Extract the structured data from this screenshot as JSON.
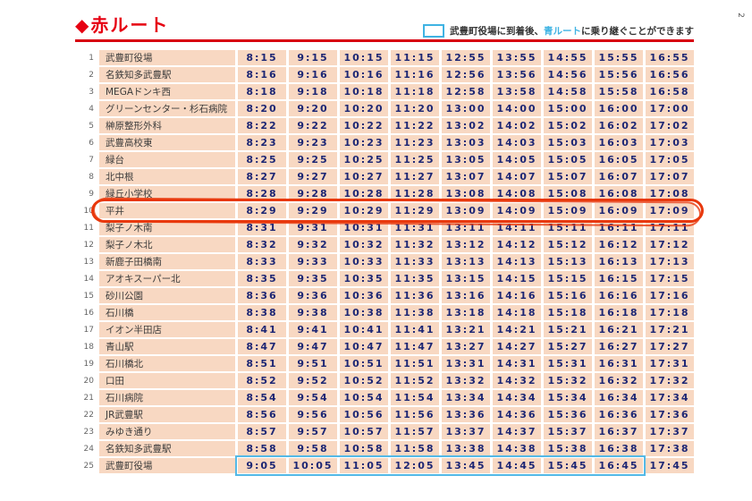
{
  "page_number": "2",
  "theme": {
    "accent": "#e60012",
    "rule": "#d7000f",
    "blue": "#3fb3e3",
    "marker": "#e8380d",
    "rowbg": "#f8d8c2",
    "timecol": "#1c2674",
    "namecol": "#3b3b3b"
  },
  "header": {
    "title": "◆赤ルート",
    "note": {
      "part1": "武豊町役場に到着後、",
      "blue_route": "青ルート",
      "part2": "に乗り継ぐことができます"
    }
  },
  "table": {
    "highlight_row": 10,
    "blue_box": {
      "row": 25,
      "col_start": 0,
      "col_end": 7
    },
    "rows": [
      {
        "no": 1,
        "stop": "武豊町役場",
        "times": [
          "8:15",
          "9:15",
          "10:15",
          "11:15",
          "12:55",
          "13:55",
          "14:55",
          "15:55",
          "16:55"
        ]
      },
      {
        "no": 2,
        "stop": "名鉄知多武豊駅",
        "times": [
          "8:16",
          "9:16",
          "10:16",
          "11:16",
          "12:56",
          "13:56",
          "14:56",
          "15:56",
          "16:56"
        ]
      },
      {
        "no": 3,
        "stop": "MEGAドンキ西",
        "times": [
          "8:18",
          "9:18",
          "10:18",
          "11:18",
          "12:58",
          "13:58",
          "14:58",
          "15:58",
          "16:58"
        ]
      },
      {
        "no": 4,
        "stop": "グリーンセンター・杉石病院",
        "times": [
          "8:20",
          "9:20",
          "10:20",
          "11:20",
          "13:00",
          "14:00",
          "15:00",
          "16:00",
          "17:00"
        ]
      },
      {
        "no": 5,
        "stop": "榊原整形外科",
        "times": [
          "8:22",
          "9:22",
          "10:22",
          "11:22",
          "13:02",
          "14:02",
          "15:02",
          "16:02",
          "17:02"
        ]
      },
      {
        "no": 6,
        "stop": "武豊高校東",
        "times": [
          "8:23",
          "9:23",
          "10:23",
          "11:23",
          "13:03",
          "14:03",
          "15:03",
          "16:03",
          "17:03"
        ]
      },
      {
        "no": 7,
        "stop": "緑台",
        "times": [
          "8:25",
          "9:25",
          "10:25",
          "11:25",
          "13:05",
          "14:05",
          "15:05",
          "16:05",
          "17:05"
        ]
      },
      {
        "no": 8,
        "stop": "北中根",
        "times": [
          "8:27",
          "9:27",
          "10:27",
          "11:27",
          "13:07",
          "14:07",
          "15:07",
          "16:07",
          "17:07"
        ]
      },
      {
        "no": 9,
        "stop": "緑丘小学校",
        "times": [
          "8:28",
          "9:28",
          "10:28",
          "11:28",
          "13:08",
          "14:08",
          "15:08",
          "16:08",
          "17:08"
        ]
      },
      {
        "no": 10,
        "stop": "平井",
        "times": [
          "8:29",
          "9:29",
          "10:29",
          "11:29",
          "13:09",
          "14:09",
          "15:09",
          "16:09",
          "17:09"
        ]
      },
      {
        "no": 11,
        "stop": "梨子ノ木南",
        "times": [
          "8:31",
          "9:31",
          "10:31",
          "11:31",
          "13:11",
          "14:11",
          "15:11",
          "16:11",
          "17:11"
        ]
      },
      {
        "no": 12,
        "stop": "梨子ノ木北",
        "times": [
          "8:32",
          "9:32",
          "10:32",
          "11:32",
          "13:12",
          "14:12",
          "15:12",
          "16:12",
          "17:12"
        ]
      },
      {
        "no": 13,
        "stop": "新鹿子田橋南",
        "times": [
          "8:33",
          "9:33",
          "10:33",
          "11:33",
          "13:13",
          "14:13",
          "15:13",
          "16:13",
          "17:13"
        ]
      },
      {
        "no": 14,
        "stop": "アオキスーパー北",
        "times": [
          "8:35",
          "9:35",
          "10:35",
          "11:35",
          "13:15",
          "14:15",
          "15:15",
          "16:15",
          "17:15"
        ]
      },
      {
        "no": 15,
        "stop": "砂川公園",
        "times": [
          "8:36",
          "9:36",
          "10:36",
          "11:36",
          "13:16",
          "14:16",
          "15:16",
          "16:16",
          "17:16"
        ]
      },
      {
        "no": 16,
        "stop": "石川橋",
        "times": [
          "8:38",
          "9:38",
          "10:38",
          "11:38",
          "13:18",
          "14:18",
          "15:18",
          "16:18",
          "17:18"
        ]
      },
      {
        "no": 17,
        "stop": "イオン半田店",
        "times": [
          "8:41",
          "9:41",
          "10:41",
          "11:41",
          "13:21",
          "14:21",
          "15:21",
          "16:21",
          "17:21"
        ]
      },
      {
        "no": 18,
        "stop": "青山駅",
        "times": [
          "8:47",
          "9:47",
          "10:47",
          "11:47",
          "13:27",
          "14:27",
          "15:27",
          "16:27",
          "17:27"
        ]
      },
      {
        "no": 19,
        "stop": "石川橋北",
        "times": [
          "8:51",
          "9:51",
          "10:51",
          "11:51",
          "13:31",
          "14:31",
          "15:31",
          "16:31",
          "17:31"
        ]
      },
      {
        "no": 20,
        "stop": "口田",
        "times": [
          "8:52",
          "9:52",
          "10:52",
          "11:52",
          "13:32",
          "14:32",
          "15:32",
          "16:32",
          "17:32"
        ]
      },
      {
        "no": 21,
        "stop": "石川病院",
        "times": [
          "8:54",
          "9:54",
          "10:54",
          "11:54",
          "13:34",
          "14:34",
          "15:34",
          "16:34",
          "17:34"
        ]
      },
      {
        "no": 22,
        "stop": "JR武豊駅",
        "times": [
          "8:56",
          "9:56",
          "10:56",
          "11:56",
          "13:36",
          "14:36",
          "15:36",
          "16:36",
          "17:36"
        ]
      },
      {
        "no": 23,
        "stop": "みゆき通り",
        "times": [
          "8:57",
          "9:57",
          "10:57",
          "11:57",
          "13:37",
          "14:37",
          "15:37",
          "16:37",
          "17:37"
        ]
      },
      {
        "no": 24,
        "stop": "名鉄知多武豊駅",
        "times": [
          "8:58",
          "9:58",
          "10:58",
          "11:58",
          "13:38",
          "14:38",
          "15:38",
          "16:38",
          "17:38"
        ]
      },
      {
        "no": 25,
        "stop": "武豊町役場",
        "times": [
          "9:05",
          "10:05",
          "11:05",
          "12:05",
          "13:45",
          "14:45",
          "15:45",
          "16:45",
          "17:45"
        ]
      }
    ]
  }
}
